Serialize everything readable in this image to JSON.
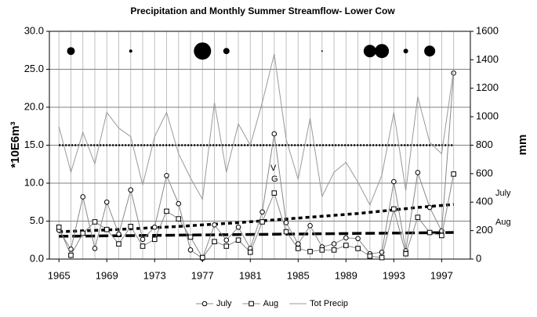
{
  "chart_data": {
    "type": "line",
    "title": "Precipitation and Monthly Summer Streamflow- Lower Cow",
    "y_label": "*10E6m³",
    "y2_label": "mm",
    "x": [
      1965,
      1966,
      1967,
      1968,
      1969,
      1970,
      1971,
      1972,
      1973,
      1974,
      1975,
      1976,
      1977,
      1978,
      1979,
      1980,
      1981,
      1982,
      1983,
      1984,
      1985,
      1986,
      1987,
      1988,
      1989,
      1990,
      1991,
      1992,
      1993,
      1994,
      1995,
      1996,
      1997,
      1998
    ],
    "xlim": [
      1964.2,
      1999.4
    ],
    "xticks": [
      1965,
      1969,
      1973,
      1977,
      1981,
      1985,
      1989,
      1993,
      1997
    ],
    "ylim": [
      0,
      30
    ],
    "yticks": [
      {
        "value": 0,
        "label": "0.0"
      },
      {
        "value": 5,
        "label": "5.0"
      },
      {
        "value": 10,
        "label": "10.0"
      },
      {
        "value": 15,
        "label": "15.0"
      },
      {
        "value": 20,
        "label": "20.0"
      },
      {
        "value": 25,
        "label": "25.0"
      },
      {
        "value": 30,
        "label": "30.0"
      }
    ],
    "y2lim": [
      0,
      1600
    ],
    "y2ticks": [
      0,
      200,
      400,
      600,
      800,
      1000,
      1200,
      1400,
      1600
    ],
    "grid": true,
    "legend": "bottom",
    "series": [
      {
        "name": "July",
        "color": "#888888",
        "marker": "circle",
        "values": [
          3.8,
          1.3,
          8.2,
          1.4,
          7.5,
          3.3,
          9.1,
          2.6,
          4.2,
          11.0,
          7.3,
          1.2,
          0.1,
          4.5,
          2.5,
          4.2,
          1.4,
          6.2,
          16.5,
          4.8,
          2.0,
          4.4,
          1.6,
          2.0,
          2.8,
          2.7,
          0.7,
          0.9,
          10.2,
          1.1,
          11.4,
          6.8,
          3.7,
          24.5
        ]
      },
      {
        "name": "Aug",
        "color": "#888888",
        "marker": "square",
        "values": [
          4.2,
          0.5,
          3.4,
          4.9,
          3.9,
          2.0,
          4.3,
          1.7,
          2.6,
          6.3,
          5.3,
          2.9,
          0.2,
          2.3,
          1.7,
          2.5,
          0.9,
          4.9,
          8.7,
          3.6,
          1.4,
          1.0,
          1.2,
          1.2,
          1.8,
          1.4,
          0.4,
          0.2,
          6.6,
          0.7,
          5.5,
          3.5,
          3.1,
          11.2
        ]
      },
      {
        "name": "Tot Precip",
        "color": "#999999",
        "marker": "none",
        "axis": "y2",
        "values": [
          930,
          610,
          890,
          670,
          1030,
          920,
          860,
          520,
          860,
          1030,
          740,
          570,
          420,
          1100,
          610,
          950,
          800,
          1100,
          1440,
          840,
          560,
          990,
          440,
          610,
          680,
          540,
          380,
          590,
          1030,
          480,
          1140,
          820,
          740,
          1330
        ]
      }
    ],
    "trends": [
      {
        "label": "July",
        "x": [
          1965,
          1970,
          1975,
          1980,
          1985,
          1990,
          1995,
          1998
        ],
        "values": [
          3.6,
          3.9,
          4.3,
          4.8,
          5.4,
          6.0,
          6.8,
          7.2
        ]
      },
      {
        "label": "Aug",
        "x": [
          1965,
          1998
        ],
        "values": [
          3.0,
          3.5
        ]
      }
    ],
    "mean_line": 800,
    "bubbles": {
      "x": [
        1966,
        1971,
        1977,
        1979,
        1987,
        1991,
        1992,
        1994,
        1996
      ],
      "y": 27.4,
      "sizes": [
        5,
        2,
        11,
        4,
        1,
        8,
        9,
        3,
        7
      ]
    },
    "annotations": [
      "V",
      "G"
    ]
  }
}
